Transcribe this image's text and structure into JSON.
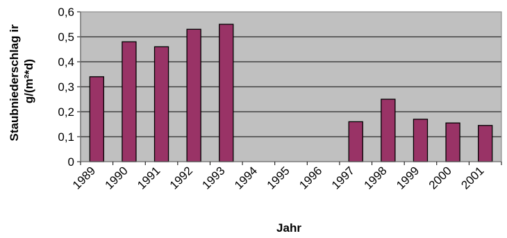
{
  "chart_data": {
    "type": "bar",
    "title": "",
    "xlabel": "Jahr",
    "ylabel_lines": [
      "Staubniederschlag ir",
      "g/(m²*d)"
    ],
    "categories": [
      "1989",
      "1990",
      "1991",
      "1992",
      "1993",
      "1994",
      "1995",
      "1996",
      "1997",
      "1998",
      "1999",
      "2000",
      "2001"
    ],
    "values": [
      0.34,
      0.48,
      0.46,
      0.53,
      0.55,
      null,
      null,
      null,
      0.16,
      0.25,
      0.17,
      0.155,
      0.145
    ],
    "ylim": [
      0,
      0.6
    ],
    "yticks": [
      "0",
      "0,1",
      "0,2",
      "0,3",
      "0,4",
      "0,5",
      "0,6"
    ],
    "grid": true,
    "legend": "none",
    "colors": {
      "bar": "#993366",
      "bar_edge": "#000000",
      "plot_bg": "#c0c0c0",
      "gridline": "#000000"
    }
  }
}
